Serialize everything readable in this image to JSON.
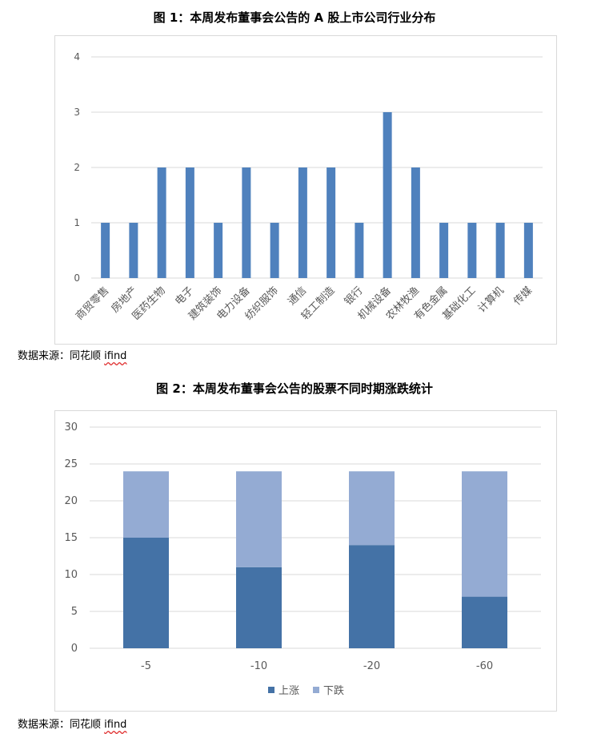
{
  "figure1": {
    "title": "图 1：本周发布董事会公告的 A 股上市公司行业分布",
    "source_prefix": "数据来源：同花顺 ",
    "source_brand": "ifind"
  },
  "figure2": {
    "title": "图 2：本周发布董事会公告的股票不同时期涨跌统计",
    "source_prefix": "数据来源：同花顺 ",
    "source_brand": "ifind"
  },
  "colors": {
    "bar1": "#4f81bd",
    "up": "#4472a6",
    "down": "#94abd3",
    "grid": "#d9d9d9",
    "axis_text": "#595959"
  },
  "chart_data": [
    {
      "type": "bar",
      "title": "图 1：本周发布董事会公告的 A 股上市公司行业分布",
      "categories": [
        "商贸零售",
        "房地产",
        "医药生物",
        "电子",
        "建筑装饰",
        "电力设备",
        "纺织服饰",
        "通信",
        "轻工制造",
        "银行",
        "机械设备",
        "农林牧渔",
        "有色金属",
        "基础化工",
        "计算机",
        "传媒"
      ],
      "values": [
        1,
        1,
        2,
        2,
        1,
        2,
        1,
        2,
        2,
        1,
        3,
        2,
        1,
        1,
        1,
        1
      ],
      "ylim": [
        0,
        4
      ],
      "yticks": [
        0,
        1,
        2,
        3,
        4
      ],
      "grid": true,
      "legend": "none"
    },
    {
      "type": "bar",
      "stacked": true,
      "title": "图 2：本周发布董事会公告的股票不同时期涨跌统计",
      "categories": [
        "-5",
        "-10",
        "-20",
        "-60"
      ],
      "series": [
        {
          "name": "上涨",
          "values": [
            15,
            11,
            14,
            7
          ]
        },
        {
          "name": "下跌",
          "values": [
            9,
            13,
            10,
            17
          ]
        }
      ],
      "ylim": [
        0,
        30
      ],
      "yticks": [
        0,
        5,
        10,
        15,
        20,
        25,
        30
      ],
      "grid": true,
      "legend": "bottom"
    }
  ]
}
